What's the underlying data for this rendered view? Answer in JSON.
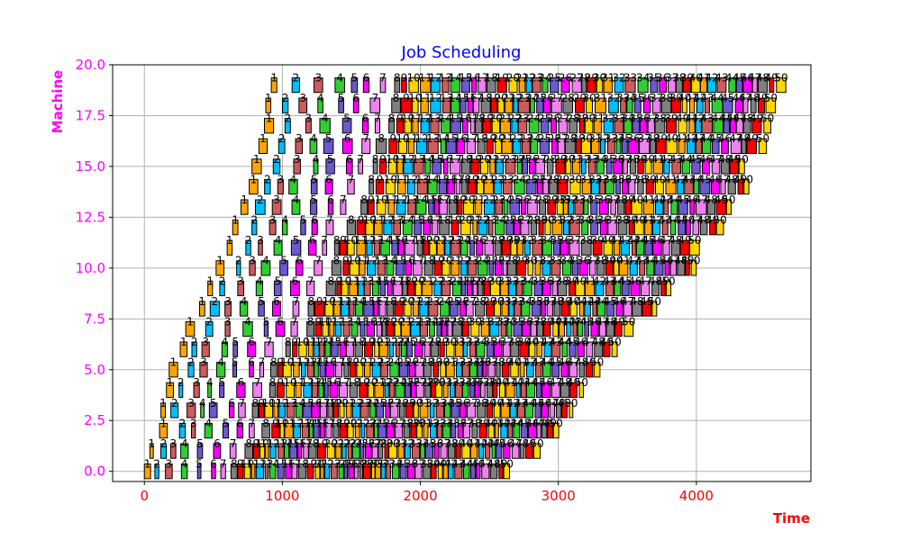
{
  "chart_data": {
    "type": "gantt",
    "title": "Job Scheduling",
    "xlabel": "Time",
    "ylabel": "Machine",
    "xlim": [
      -230,
      4830
    ],
    "ylim": [
      -0.5,
      20.0
    ],
    "xticks": [
      "0",
      "1000",
      "2000",
      "3000",
      "4000"
    ],
    "yticks": [
      "0.0",
      "2.5",
      "5.0",
      "7.5",
      "10.0",
      "12.5",
      "15.0",
      "17.5",
      "20.0"
    ],
    "grid": true,
    "machines": 20,
    "jobs_per_machine": 50,
    "job_colors": [
      "#FFA500",
      "#00BFFF",
      "#CD5C5C",
      "#32CD32",
      "#6A5ACD",
      "#FF00FF",
      "#EE82EE",
      "#808080",
      "#FF0000",
      "#FFD700"
    ],
    "rows": [
      {
        "machine": 0,
        "start": 0,
        "end": 2700
      },
      {
        "machine": 1,
        "start": 40,
        "end": 2950
      },
      {
        "machine": 2,
        "start": 110,
        "end": 3080
      },
      {
        "machine": 3,
        "start": 120,
        "end": 3160
      },
      {
        "machine": 4,
        "start": 160,
        "end": 3240
      },
      {
        "machine": 5,
        "start": 180,
        "end": 3350
      },
      {
        "machine": 6,
        "start": 260,
        "end": 3500
      },
      {
        "machine": 7,
        "start": 300,
        "end": 3620
      },
      {
        "machine": 8,
        "start": 400,
        "end": 3780
      },
      {
        "machine": 9,
        "start": 460,
        "end": 3880
      },
      {
        "machine": 10,
        "start": 520,
        "end": 4050
      },
      {
        "machine": 11,
        "start": 600,
        "end": 4110
      },
      {
        "machine": 12,
        "start": 640,
        "end": 4280
      },
      {
        "machine": 13,
        "start": 700,
        "end": 4340
      },
      {
        "machine": 14,
        "start": 760,
        "end": 4420
      },
      {
        "machine": 15,
        "start": 780,
        "end": 4450
      },
      {
        "machine": 16,
        "start": 830,
        "end": 4550
      },
      {
        "machine": 17,
        "start": 870,
        "end": 4610
      },
      {
        "machine": 18,
        "start": 880,
        "end": 4640
      },
      {
        "machine": 19,
        "start": 920,
        "end": 4720
      }
    ]
  },
  "colors": {
    "title": "#0000FF",
    "xlabel": "#FF0000",
    "ylabel": "#FF00FF",
    "xticks": "#FF0000",
    "yticks": "#FF00FF",
    "grid": "#b0b0b0",
    "bar_edge": "#000000"
  }
}
